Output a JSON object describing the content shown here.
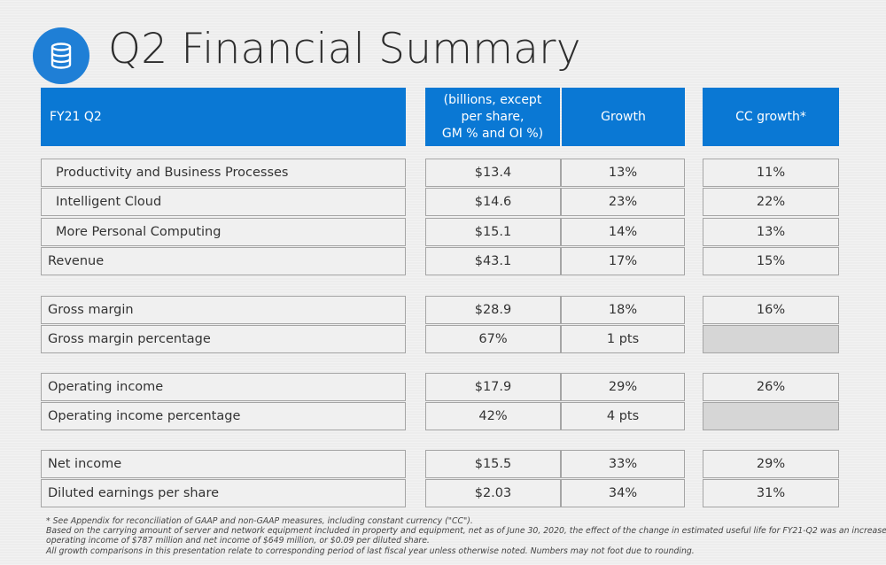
{
  "title": "Q2 Financial Summary",
  "icon": "database-icon",
  "accent_color": "#0a78d4",
  "header": {
    "period": "FY21 Q2",
    "metric_line1": "(billions, except",
    "metric_line2": "per share,",
    "metric_line3": "GM % and OI %)",
    "growth": "Growth",
    "cc_growth": "CC growth*"
  },
  "groups": [
    {
      "rows": [
        {
          "label": "Productivity and Business Processes",
          "value": "$13.4",
          "growth": "13%",
          "cc": "11%",
          "indent": true
        },
        {
          "label": "Intelligent Cloud",
          "value": "$14.6",
          "growth": "23%",
          "cc": "22%",
          "indent": true
        },
        {
          "label": "More Personal Computing",
          "value": "$15.1",
          "growth": "14%",
          "cc": "13%",
          "indent": true
        },
        {
          "label": "Revenue",
          "value": "$43.1",
          "growth": "17%",
          "cc": "15%",
          "indent": false
        }
      ]
    },
    {
      "rows": [
        {
          "label": "Gross margin",
          "value": "$28.9",
          "growth": "18%",
          "cc": "16%",
          "indent": false
        },
        {
          "label": "Gross margin percentage",
          "value": "67%",
          "growth": "1 pts",
          "cc": "",
          "indent": false
        }
      ]
    },
    {
      "rows": [
        {
          "label": "Operating income",
          "value": "$17.9",
          "growth": "29%",
          "cc": "26%",
          "indent": false
        },
        {
          "label": "Operating income percentage",
          "value": "42%",
          "growth": "4 pts",
          "cc": "",
          "indent": false
        }
      ]
    },
    {
      "rows": [
        {
          "label": "Net income",
          "value": "$15.5",
          "growth": "33%",
          "cc": "29%",
          "indent": false
        },
        {
          "label": "Diluted earnings per share",
          "value": "$2.03",
          "growth": "34%",
          "cc": "31%",
          "indent": false
        }
      ]
    }
  ],
  "footnotes": {
    "line1": "* See Appendix for reconciliation of GAAP and non-GAAP measures, including constant currency (\"CC\").",
    "line2": "Based on the carrying amount of server and network equipment included in property and equipment, net as of June 30, 2020, the effect of the change in estimated useful life for FY21-Q2 was an increase in",
    "line3": "operating income of $787 million and net income of $649 million, or $0.09 per diluted share.",
    "line4": "All growth comparisons in this presentation relate to corresponding period of last fiscal year unless otherwise noted. Numbers may not foot due to rounding."
  }
}
